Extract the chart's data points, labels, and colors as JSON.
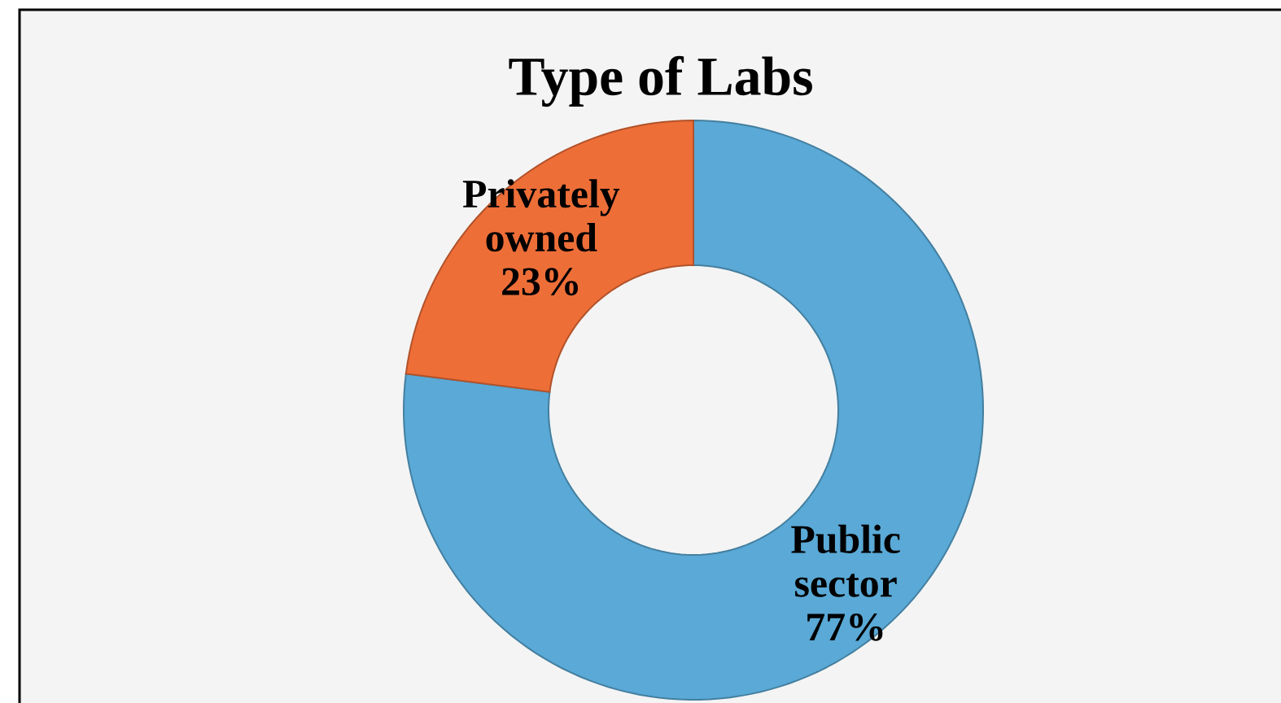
{
  "chart_data": {
    "type": "donut",
    "title": "Type of Labs",
    "categories": [
      "Public sector",
      "Privately owned"
    ],
    "values": [
      77,
      23
    ],
    "value_labels": [
      "77%",
      "23%"
    ],
    "colors": [
      "#5aa9d6",
      "#ee6e38"
    ]
  }
}
